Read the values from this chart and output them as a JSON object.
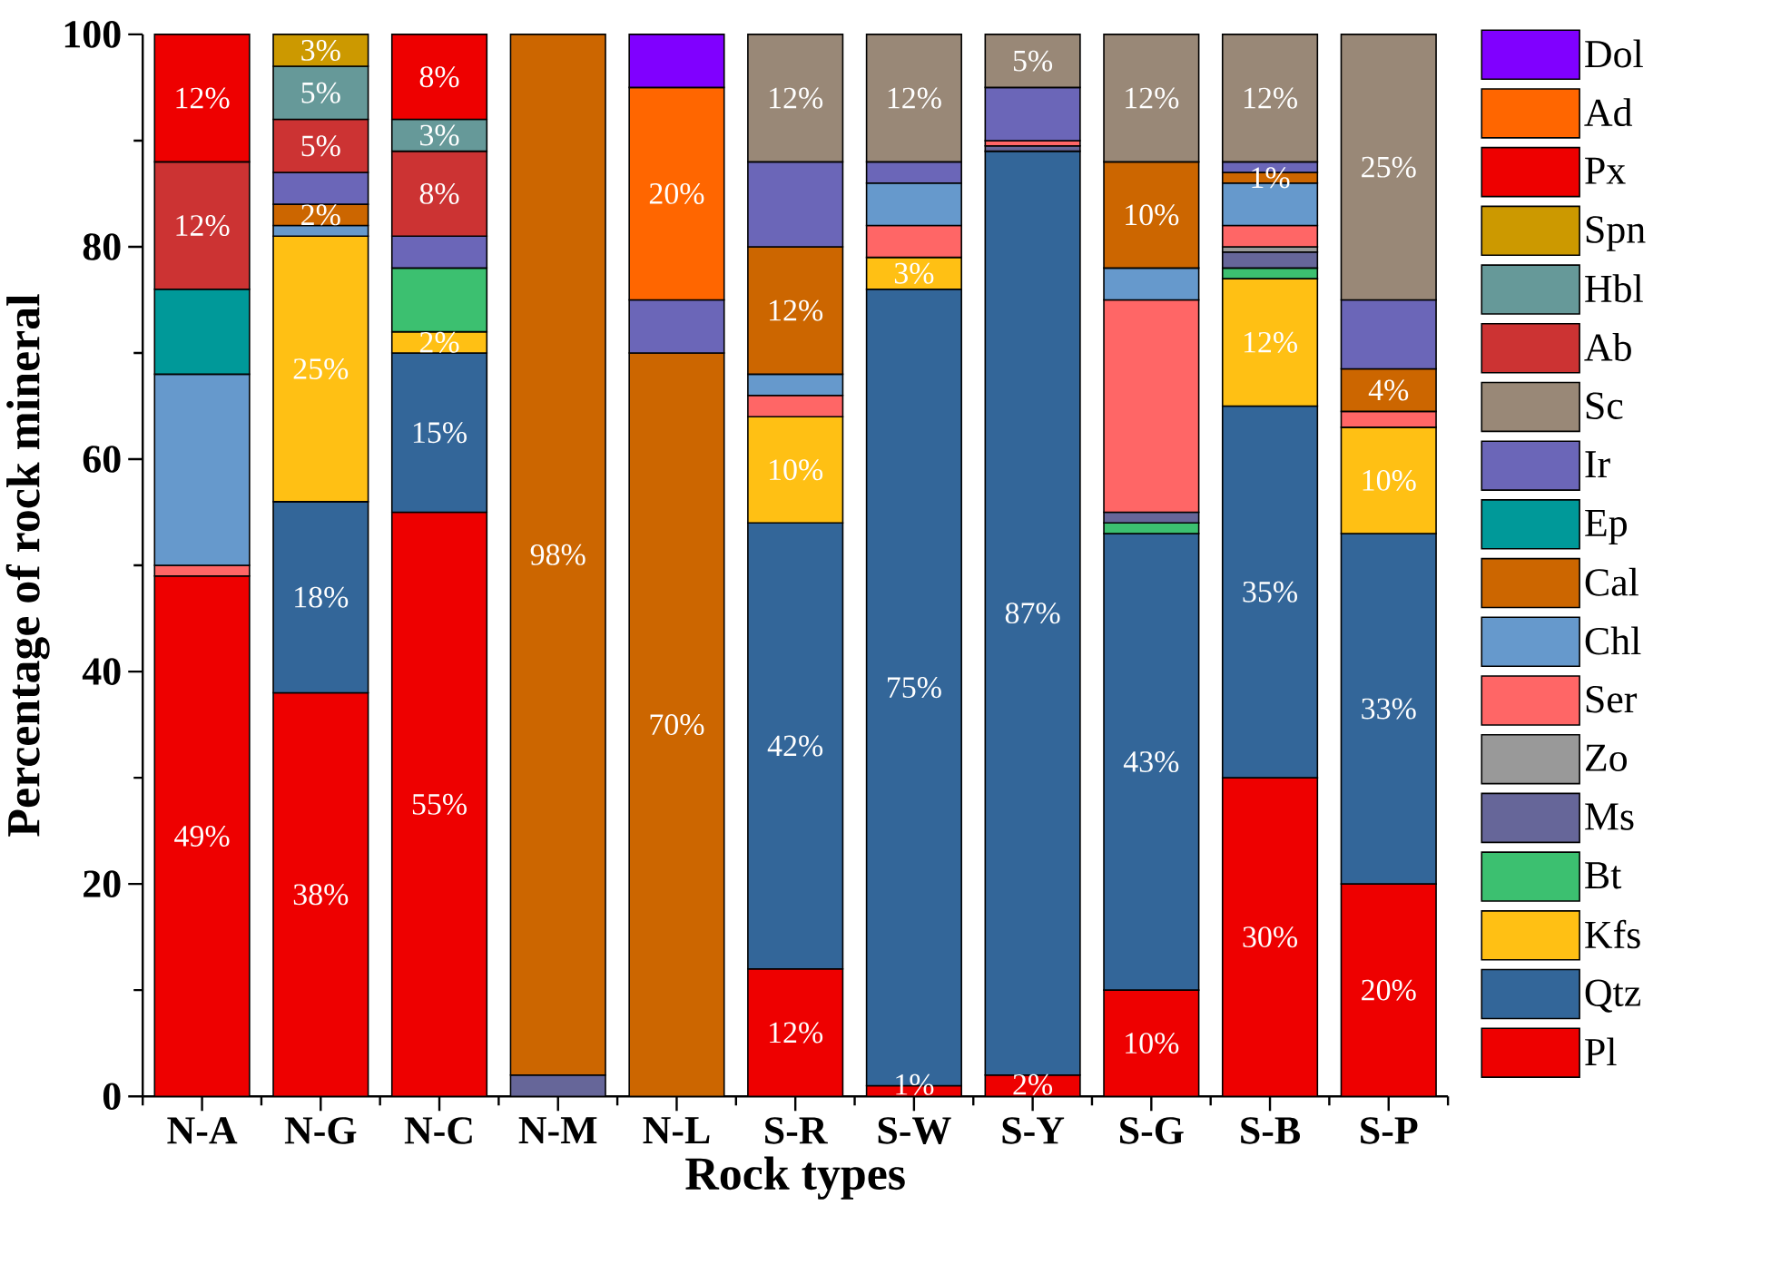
{
  "chart_data": {
    "type": "bar",
    "stacked": true,
    "xlabel": "Rock types",
    "ylabel": "Percentage of rock mineral",
    "categories": [
      "N-A",
      "N-G",
      "N-C",
      "N-M",
      "N-L",
      "S-R",
      "S-W",
      "S-Y",
      "S-G",
      "S-B",
      "S-P"
    ],
    "ylim": [
      0,
      100
    ],
    "yticks": [
      0,
      20,
      40,
      60,
      80,
      100
    ],
    "legend": "right",
    "series": [
      {
        "name": "Pl",
        "color": "#ee0000",
        "values": [
          49,
          38,
          55,
          null,
          null,
          12,
          1,
          2,
          10,
          30,
          20
        ],
        "value_labels": [
          "49%",
          "38%",
          "55%",
          null,
          null,
          "12%",
          "1%",
          "2%",
          "10%",
          "30%",
          "20%"
        ]
      },
      {
        "name": "Qtz",
        "color": "#336699",
        "values": [
          null,
          18,
          15,
          null,
          null,
          42,
          75,
          87,
          43,
          35,
          33
        ],
        "value_labels": [
          null,
          "18%",
          "15%",
          null,
          null,
          "42%",
          "75%",
          "87%",
          "43%",
          "35%",
          "33%"
        ]
      },
      {
        "name": "Kfs",
        "color": "#ffc014",
        "values": [
          null,
          25,
          2,
          null,
          null,
          10,
          3,
          null,
          null,
          12,
          10
        ],
        "value_labels": [
          null,
          "25%",
          "2%",
          null,
          null,
          "10%",
          "3%",
          null,
          null,
          "12%",
          "10%"
        ]
      },
      {
        "name": "Bt",
        "color": "#3cc070",
        "values": [
          null,
          null,
          6,
          null,
          null,
          null,
          null,
          null,
          1,
          1,
          null
        ]
      },
      {
        "name": "Ms",
        "color": "#666699",
        "values": [
          null,
          null,
          null,
          2,
          null,
          null,
          null,
          0.5,
          1,
          1.5,
          null
        ]
      },
      {
        "name": "Zo",
        "color": "#999999",
        "values": [
          null,
          null,
          null,
          null,
          null,
          null,
          null,
          null,
          null,
          0.5,
          null
        ]
      },
      {
        "name": "Ser",
        "color": "#ff6666",
        "values": [
          1,
          null,
          null,
          null,
          null,
          2,
          3,
          0.5,
          20,
          2,
          1.5
        ]
      },
      {
        "name": "Chl",
        "color": "#6699cc",
        "values": [
          18,
          1,
          null,
          null,
          null,
          2,
          4,
          null,
          3,
          4,
          null
        ]
      },
      {
        "name": "Cal",
        "color": "#cc6600",
        "values": [
          null,
          2,
          null,
          98,
          70,
          12,
          null,
          null,
          10,
          1,
          4
        ],
        "value_labels": [
          null,
          "2%",
          null,
          "98%",
          "70%",
          "12%",
          null,
          null,
          "10%",
          "1%",
          "4%"
        ]
      },
      {
        "name": "Ep",
        "color": "#009999",
        "values": [
          8,
          null,
          null,
          null,
          null,
          null,
          null,
          null,
          null,
          null,
          null
        ]
      },
      {
        "name": "Ir",
        "color": "#6b66b8",
        "values": [
          null,
          3,
          3,
          null,
          5,
          8,
          2,
          5,
          null,
          1,
          6.5
        ]
      },
      {
        "name": "Sc",
        "color": "#998877",
        "values": [
          null,
          null,
          null,
          null,
          null,
          12,
          12,
          5,
          12,
          12,
          25
        ],
        "value_labels": [
          null,
          null,
          null,
          null,
          null,
          "12%",
          "12%",
          "5%",
          "12%",
          "12%",
          "25%"
        ]
      },
      {
        "name": "Ab",
        "color": "#cc3333",
        "values": [
          12,
          5,
          8,
          null,
          null,
          null,
          null,
          null,
          null,
          null,
          null
        ],
        "value_labels": [
          "12%",
          "5%",
          "8%",
          null,
          null,
          null,
          null,
          null,
          null,
          null,
          null
        ]
      },
      {
        "name": "Hbl",
        "color": "#669999",
        "values": [
          null,
          5,
          3,
          null,
          null,
          null,
          null,
          null,
          null,
          null,
          null
        ],
        "value_labels": [
          null,
          "5%",
          "3%",
          null,
          null,
          null,
          null,
          null,
          null,
          null,
          null
        ]
      },
      {
        "name": "Spn",
        "color": "#cc9900",
        "values": [
          null,
          3,
          null,
          null,
          null,
          null,
          null,
          null,
          null,
          null,
          null
        ],
        "value_labels": [
          null,
          "3%",
          null,
          null,
          null,
          null,
          null,
          null,
          null,
          null,
          null
        ]
      },
      {
        "name": "Px",
        "color": "#ee0000",
        "values": [
          12,
          null,
          8,
          null,
          null,
          null,
          null,
          null,
          null,
          null,
          null
        ],
        "value_labels": [
          "12%",
          null,
          "8%",
          null,
          null,
          null,
          null,
          null,
          null,
          null,
          null
        ]
      },
      {
        "name": "Ad",
        "color": "#ff6600",
        "values": [
          null,
          null,
          null,
          null,
          20,
          null,
          null,
          null,
          null,
          null,
          null
        ],
        "value_labels": [
          null,
          null,
          null,
          null,
          "20%",
          null,
          null,
          null,
          null,
          null,
          null
        ]
      },
      {
        "name": "Dol",
        "color": "#8000ff",
        "values": [
          null,
          null,
          null,
          null,
          5,
          null,
          null,
          null,
          null,
          null,
          null
        ]
      }
    ]
  }
}
